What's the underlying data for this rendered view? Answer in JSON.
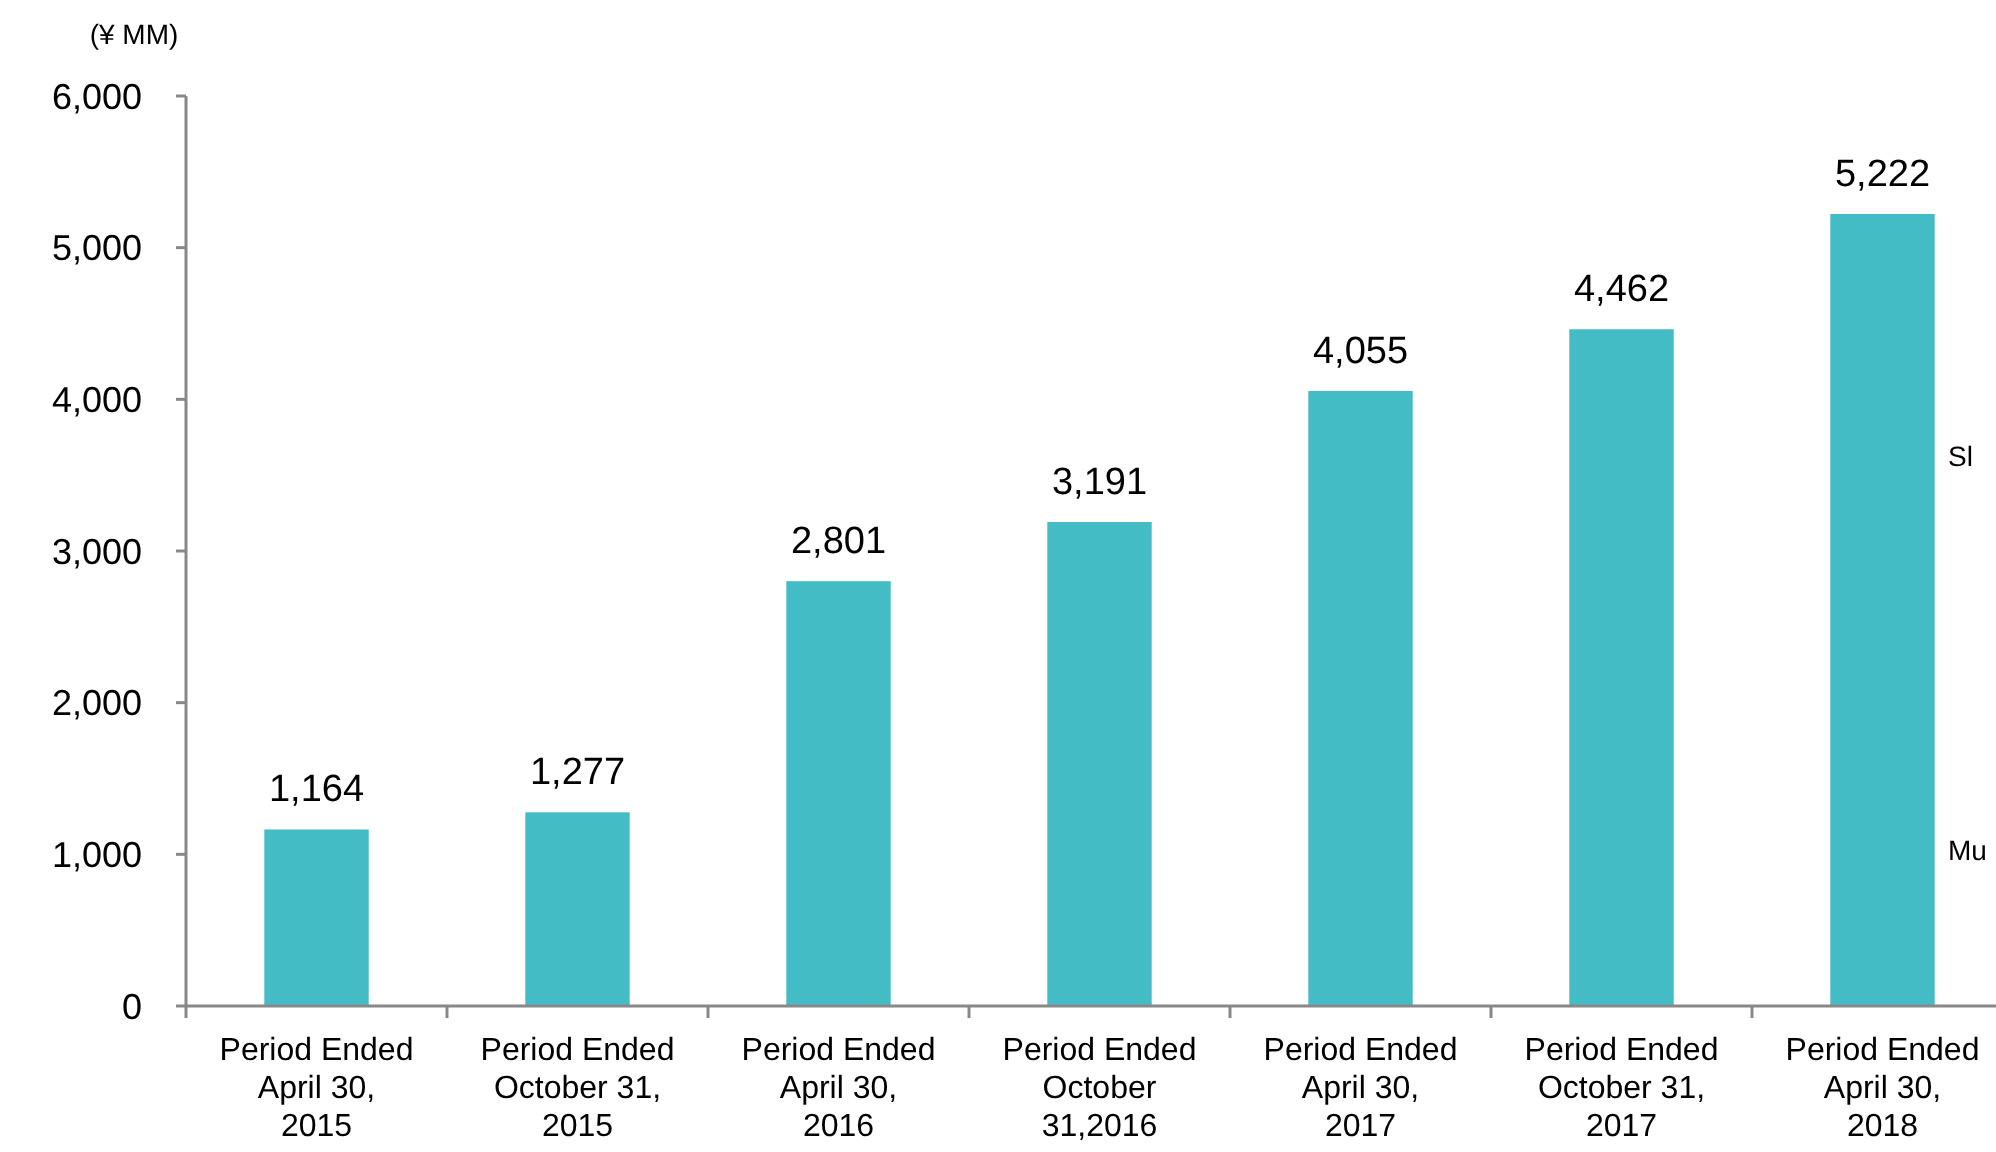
{
  "chart_data": {
    "type": "bar",
    "ylabel": "(¥ MM)",
    "categories": [
      "Period Ended\nApril 30,\n2015",
      "Period Ended\nOctober 31,\n2015",
      "Period Ended\nApril 30,\n2016",
      "Period Ended\nOctober\n31,2016",
      "Period Ended\nApril 30,\n2017",
      "Period Ended\nOctober 31,\n2017",
      "Period Ended\nApril 30,\n2018"
    ],
    "values": [
      1164,
      1277,
      2801,
      3191,
      4055,
      4462,
      5222
    ],
    "value_labels": [
      "1,164",
      "1,277",
      "2,801",
      "3,191",
      "4,055",
      "4,462",
      "5,222"
    ],
    "color": "#44bcc6",
    "ylim": [
      0,
      6000
    ],
    "yticks": [
      {
        "value": 0,
        "label": "0"
      },
      {
        "value": 1000,
        "label": "1,000"
      },
      {
        "value": 2000,
        "label": "2,000"
      },
      {
        "value": 3000,
        "label": "3,000"
      },
      {
        "value": 4000,
        "label": "4,000"
      },
      {
        "value": 5000,
        "label": "5,000"
      },
      {
        "value": 6000,
        "label": "6,000"
      }
    ],
    "grid": false,
    "annotations": [
      "Sl",
      "Mu"
    ]
  }
}
